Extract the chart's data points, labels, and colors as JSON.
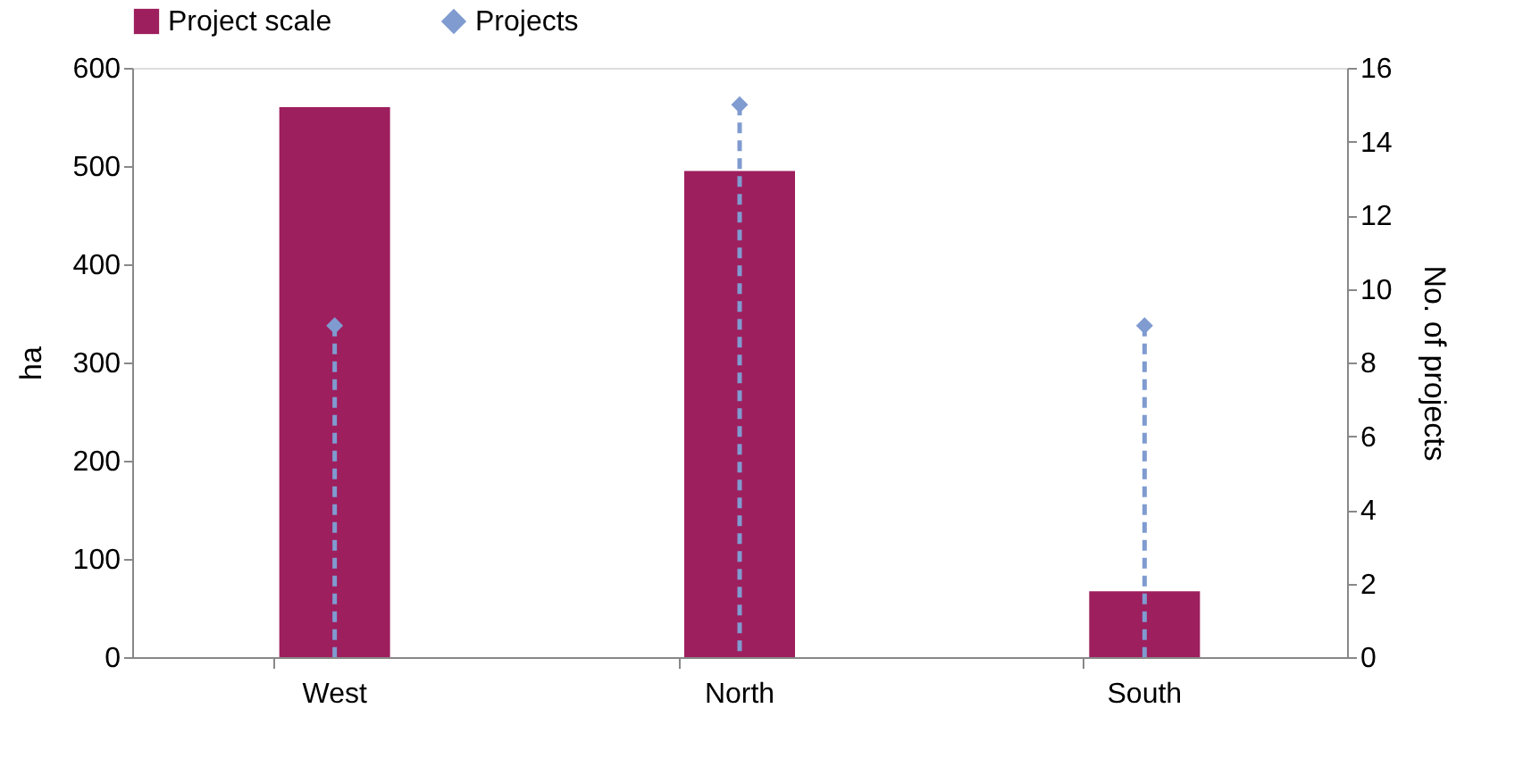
{
  "chart_data": {
    "type": "bar",
    "categories": [
      "West",
      "North",
      "South"
    ],
    "series": [
      {
        "name": "Project scale",
        "color": "#9e1f5e",
        "values": [
          560,
          495,
          67
        ]
      },
      {
        "name": "Projects",
        "color": "#7f9bd0",
        "values": [
          9,
          15,
          9
        ],
        "type": "lollipop",
        "axis": "y2",
        "marker": "diamond",
        "line_style": "dashed"
      }
    ],
    "ylabel": "ha",
    "y2label": "No. of projects",
    "ylim": [
      0,
      600
    ],
    "yticks": [
      0,
      100,
      200,
      300,
      400,
      500,
      600
    ],
    "y2lim": [
      0,
      16
    ],
    "y2ticks": [
      0,
      2,
      4,
      6,
      8,
      10,
      12,
      14,
      16
    ],
    "legend": "top"
  }
}
